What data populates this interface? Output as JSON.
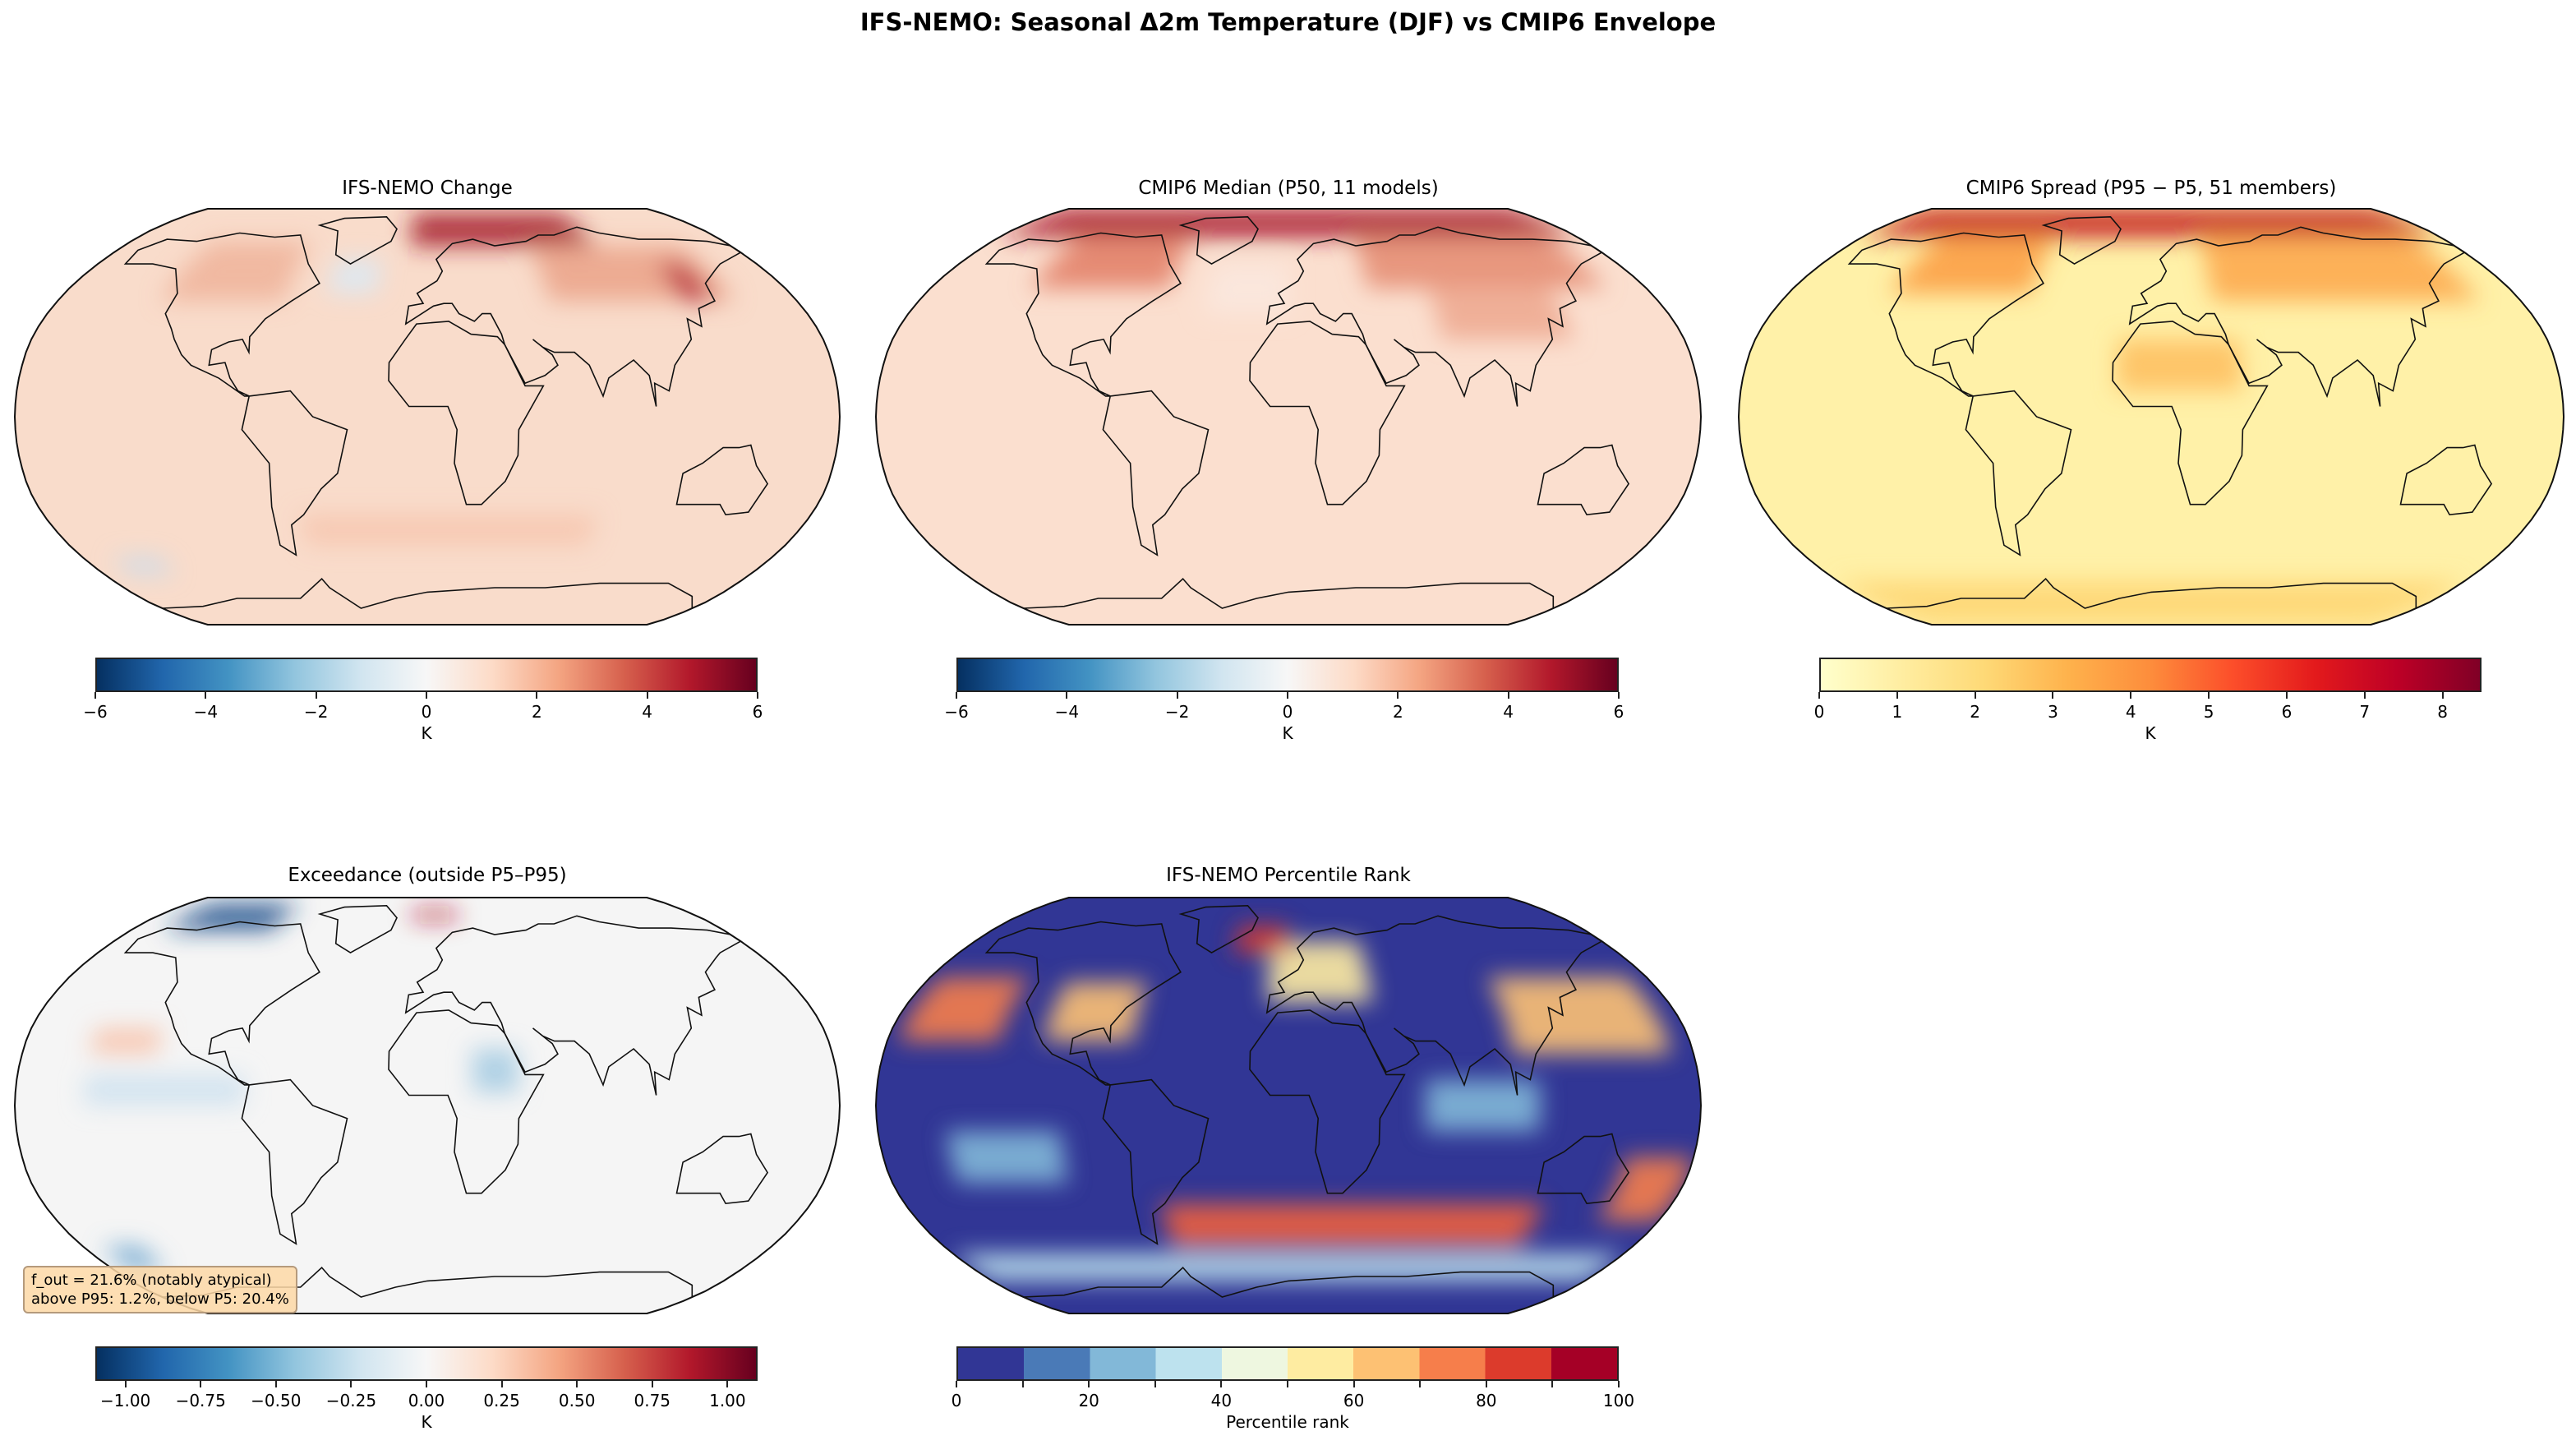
{
  "title": "IFS-NEMO: Seasonal Δ2m Temperature (DJF) vs CMIP6 Envelope",
  "chart_data": [
    {
      "type": "heatmap",
      "title": "IFS-NEMO Change",
      "projection": "Robinson",
      "colormap": [
        "#053061",
        "#2166ac",
        "#4393c3",
        "#92c5de",
        "#d1e5f0",
        "#f7f7f7",
        "#fddbc7",
        "#f4a582",
        "#d6604d",
        "#b2182b",
        "#67001f"
      ],
      "colorbar": {
        "label": "K",
        "range": [
          -6,
          6
        ],
        "ticks": [
          -6,
          -4,
          -2,
          0,
          2,
          4,
          6
        ],
        "tick_labels": [
          "−6",
          "−4",
          "−2",
          "0",
          "2",
          "4",
          "6"
        ]
      },
      "base_color": "#f9dccb",
      "features": [
        {
          "lon": [
            -10,
            100
          ],
          "lat": [
            68,
            85
          ],
          "color": "#a51d2d"
        },
        {
          "lon": [
            60,
            150
          ],
          "lat": [
            45,
            68
          ],
          "color": "#eba58c"
        },
        {
          "lon": [
            -130,
            -70
          ],
          "lat": [
            45,
            70
          ],
          "color": "#efb59c"
        },
        {
          "lon": [
            125,
            140
          ],
          "lat": [
            45,
            60
          ],
          "color": "#b8283a"
        },
        {
          "lon": [
            -50,
            -25
          ],
          "lat": [
            48,
            62
          ],
          "color": "#dbe9f3"
        },
        {
          "lon": [
            -165,
            -140
          ],
          "lat": [
            -62,
            -55
          ],
          "color": "#c9dcec"
        },
        {
          "lon": [
            -60,
            80
          ],
          "lat": [
            -50,
            -38
          ],
          "color": "#f6c6b0"
        }
      ]
    },
    {
      "type": "heatmap",
      "title": "CMIP6 Median (P50, 11 models)",
      "projection": "Robinson",
      "colormap": [
        "#053061",
        "#2166ac",
        "#4393c3",
        "#92c5de",
        "#d1e5f0",
        "#f7f7f7",
        "#fddbc7",
        "#f4a582",
        "#d6604d",
        "#b2182b",
        "#67001f"
      ],
      "colorbar": {
        "label": "K",
        "range": [
          -6,
          6
        ],
        "ticks": [
          -6,
          -4,
          -2,
          0,
          2,
          4,
          6
        ],
        "tick_labels": [
          "−6",
          "−4",
          "−2",
          "0",
          "2",
          "4",
          "6"
        ]
      },
      "base_color": "#fbdfcf",
      "features": [
        {
          "lon": [
            -180,
            180
          ],
          "lat": [
            72,
            90
          ],
          "color": "#a8192b"
        },
        {
          "lon": [
            -130,
            -60
          ],
          "lat": [
            50,
            72
          ],
          "color": "#e3826a"
        },
        {
          "lon": [
            40,
            160
          ],
          "lat": [
            50,
            72
          ],
          "color": "#e58f76"
        },
        {
          "lon": [
            70,
            130
          ],
          "lat": [
            30,
            50
          ],
          "color": "#eeab92"
        },
        {
          "lon": [
            -40,
            0
          ],
          "lat": [
            40,
            60
          ],
          "color": "#fbe8de"
        }
      ]
    },
    {
      "type": "heatmap",
      "title": "CMIP6 Spread (P95 − P5, 51 members)",
      "projection": "Robinson",
      "colormap": [
        "#ffffcc",
        "#ffeda0",
        "#fed976",
        "#feb24c",
        "#fd8d3c",
        "#fc4e2a",
        "#e31a1c",
        "#bd0026",
        "#800026"
      ],
      "colorbar": {
        "label": "K",
        "range": [
          0,
          8.5
        ],
        "ticks": [
          0,
          1,
          2,
          3,
          4,
          5,
          6,
          7,
          8
        ],
        "tick_labels": [
          "0",
          "1",
          "2",
          "3",
          "4",
          "5",
          "6",
          "7",
          "8"
        ]
      },
      "base_color": "#fff1a8",
      "features": [
        {
          "lon": [
            -180,
            180
          ],
          "lat": [
            72,
            90
          ],
          "color": "#c3141f"
        },
        {
          "lon": [
            -130,
            -60
          ],
          "lat": [
            48,
            72
          ],
          "color": "#fca047"
        },
        {
          "lon": [
            30,
            160
          ],
          "lat": [
            45,
            72
          ],
          "color": "#fdaa50"
        },
        {
          "lon": [
            -15,
            40
          ],
          "lat": [
            10,
            30
          ],
          "color": "#fec062"
        },
        {
          "lon": [
            -180,
            180
          ],
          "lat": [
            -90,
            -65
          ],
          "color": "#fed676"
        }
      ]
    },
    {
      "type": "heatmap",
      "title": "Exceedance (outside P5–P95)",
      "projection": "Robinson",
      "colormap": [
        "#053061",
        "#2166ac",
        "#4393c3",
        "#92c5de",
        "#d1e5f0",
        "#f7f7f7",
        "#fddbc7",
        "#f4a582",
        "#d6604d",
        "#b2182b",
        "#67001f"
      ],
      "colorbar": {
        "label": "K",
        "range": [
          -1.1,
          1.1
        ],
        "ticks": [
          -1,
          -0.75,
          -0.5,
          -0.25,
          0,
          0.25,
          0.5,
          0.75,
          1
        ],
        "tick_labels": [
          "−1.00",
          "−0.75",
          "−0.50",
          "−0.25",
          "0.00",
          "0.25",
          "0.50",
          "0.75",
          "1.00"
        ]
      },
      "base_color": "#f5f5f5",
      "features": [
        {
          "lon": [
            -160,
            -95
          ],
          "lat": [
            70,
            84
          ],
          "color": "#1d4f8c"
        },
        {
          "lon": [
            -150,
            -120
          ],
          "lat": [
            20,
            30
          ],
          "color": "#f7c4ad"
        },
        {
          "lon": [
            -150,
            -80
          ],
          "lat": [
            0,
            12
          ],
          "color": "#cfe2ef"
        },
        {
          "lon": [
            20,
            40
          ],
          "lat": [
            5,
            22
          ],
          "color": "#a9cde3"
        },
        {
          "lon": [
            -170,
            -150
          ],
          "lat": [
            -65,
            -55
          ],
          "color": "#6fa6cf"
        },
        {
          "lon": [
            -10,
            20
          ],
          "lat": [
            75,
            80
          ],
          "color": "#b2182b"
        }
      ],
      "annotation": {
        "line1": "f_out = 21.6% (notably atypical)",
        "line2": "above P95: 1.2%, below P5: 20.4%"
      }
    },
    {
      "type": "heatmap",
      "title": "IFS-NEMO Percentile Rank",
      "projection": "Robinson",
      "colormap": [
        "#313695",
        "#4a7ab7",
        "#82b8d8",
        "#bde2ee",
        "#eef7e0",
        "#feeca1",
        "#fdc173",
        "#f67e4b",
        "#dc3b2c",
        "#a50026"
      ],
      "colorbar": {
        "label": "Percentile rank",
        "range": [
          0,
          100
        ],
        "ticks": [
          0,
          20,
          40,
          60,
          80,
          100
        ],
        "tick_labels": [
          "0",
          "20",
          "40",
          "60",
          "80",
          "100"
        ],
        "bounds": [
          0,
          10,
          20,
          30,
          40,
          50,
          60,
          70,
          80,
          90,
          100
        ]
      },
      "base_color": "#313695",
      "features": [
        {
          "lon": [
            -175,
            -130
          ],
          "lat": [
            25,
            50
          ],
          "color": "#f67e4b"
        },
        {
          "lon": [
            -110,
            -70
          ],
          "lat": [
            25,
            48
          ],
          "color": "#fdc173"
        },
        {
          "lon": [
            -10,
            40
          ],
          "lat": [
            40,
            65
          ],
          "color": "#feeca1"
        },
        {
          "lon": [
            -30,
            0
          ],
          "lat": [
            60,
            72
          ],
          "color": "#dc3b2c"
        },
        {
          "lon": [
            100,
            170
          ],
          "lat": [
            20,
            50
          ],
          "color": "#fdc173"
        },
        {
          "lon": [
            -60,
            120
          ],
          "lat": [
            -55,
            -38
          ],
          "color": "#f0603f"
        },
        {
          "lon": [
            150,
            180
          ],
          "lat": [
            -45,
            -20
          ],
          "color": "#f67e4b"
        },
        {
          "lon": [
            -150,
            -100
          ],
          "lat": [
            -30,
            -10
          ],
          "color": "#82b8d8"
        },
        {
          "lon": [
            60,
            110
          ],
          "lat": [
            -10,
            10
          ],
          "color": "#82b8d8"
        },
        {
          "lon": [
            -180,
            180
          ],
          "lat": [
            -70,
            -58
          ],
          "color": "#bde2ee"
        }
      ]
    }
  ]
}
